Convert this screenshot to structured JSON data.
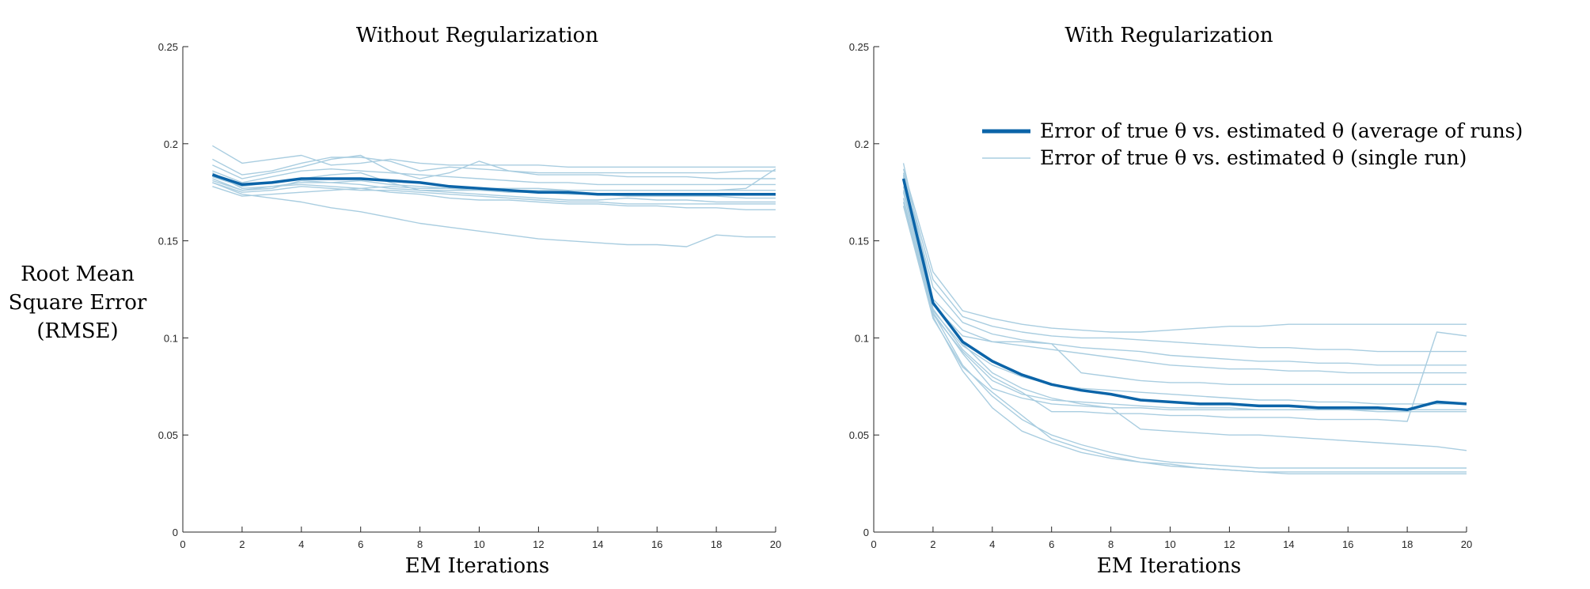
{
  "figure": {
    "ylabel_lines": [
      "Root Mean",
      "Square Error",
      "(RMSE)"
    ]
  },
  "colors": {
    "average": "#0B64A8",
    "single": "#A9CDE0",
    "axis": "#262626"
  },
  "legend": {
    "average_label": "Error of true θ vs. estimated θ (average of runs)",
    "single_label": "Error of true θ vs. estimated θ (single run)"
  },
  "chart_data": [
    {
      "type": "line",
      "title": "Without Regularization",
      "xlabel": "EM Iterations",
      "ylabel": "Root Mean Square Error (RMSE)",
      "xlim": [
        0,
        20
      ],
      "ylim": [
        0,
        0.25
      ],
      "xticks": [
        0,
        2,
        4,
        6,
        8,
        10,
        12,
        14,
        16,
        18,
        20
      ],
      "yticks": [
        0,
        0.05,
        0.1,
        0.15,
        0.2,
        0.25
      ],
      "x": [
        1,
        2,
        3,
        4,
        5,
        6,
        7,
        8,
        9,
        10,
        11,
        12,
        13,
        14,
        15,
        16,
        17,
        18,
        19,
        20
      ],
      "average": [
        0.184,
        0.179,
        0.18,
        0.182,
        0.182,
        0.182,
        0.181,
        0.18,
        0.178,
        0.177,
        0.176,
        0.175,
        0.175,
        0.174,
        0.174,
        0.174,
        0.174,
        0.174,
        0.174,
        0.174
      ],
      "runs": [
        [
          0.199,
          0.19,
          0.192,
          0.194,
          0.189,
          0.19,
          0.192,
          0.19,
          0.189,
          0.189,
          0.189,
          0.189,
          0.188,
          0.188,
          0.188,
          0.188,
          0.188,
          0.188,
          0.188,
          0.188
        ],
        [
          0.192,
          0.184,
          0.186,
          0.19,
          0.193,
          0.193,
          0.191,
          0.186,
          0.188,
          0.187,
          0.186,
          0.185,
          0.185,
          0.185,
          0.185,
          0.185,
          0.185,
          0.185,
          0.186,
          0.186
        ],
        [
          0.189,
          0.182,
          0.185,
          0.188,
          0.192,
          0.194,
          0.186,
          0.182,
          0.185,
          0.191,
          0.186,
          0.184,
          0.184,
          0.184,
          0.183,
          0.183,
          0.183,
          0.182,
          0.182,
          0.182
        ],
        [
          0.186,
          0.18,
          0.183,
          0.186,
          0.187,
          0.186,
          0.185,
          0.184,
          0.183,
          0.182,
          0.181,
          0.18,
          0.18,
          0.179,
          0.179,
          0.179,
          0.179,
          0.179,
          0.179,
          0.179
        ],
        [
          0.183,
          0.178,
          0.18,
          0.182,
          0.184,
          0.185,
          0.18,
          0.176,
          0.176,
          0.176,
          0.176,
          0.176,
          0.176,
          0.176,
          0.176,
          0.176,
          0.176,
          0.176,
          0.176,
          0.176
        ],
        [
          0.181,
          0.176,
          0.178,
          0.18,
          0.18,
          0.181,
          0.179,
          0.178,
          0.177,
          0.176,
          0.175,
          0.175,
          0.174,
          0.174,
          0.173,
          0.173,
          0.173,
          0.173,
          0.172,
          0.172
        ],
        [
          0.18,
          0.175,
          0.176,
          0.178,
          0.177,
          0.176,
          0.176,
          0.175,
          0.174,
          0.173,
          0.172,
          0.171,
          0.17,
          0.17,
          0.169,
          0.169,
          0.169,
          0.169,
          0.169,
          0.169
        ],
        [
          0.178,
          0.173,
          0.174,
          0.175,
          0.176,
          0.177,
          0.175,
          0.174,
          0.172,
          0.171,
          0.171,
          0.17,
          0.169,
          0.169,
          0.168,
          0.168,
          0.167,
          0.167,
          0.166,
          0.166
        ],
        [
          0.182,
          0.176,
          0.177,
          0.181,
          0.18,
          0.179,
          0.177,
          0.176,
          0.175,
          0.174,
          0.173,
          0.172,
          0.171,
          0.171,
          0.172,
          0.171,
          0.171,
          0.17,
          0.17,
          0.17
        ],
        [
          0.185,
          0.177,
          0.178,
          0.179,
          0.178,
          0.177,
          0.178,
          0.177,
          0.177,
          0.177,
          0.177,
          0.177,
          0.176,
          0.176,
          0.176,
          0.176,
          0.176,
          0.176,
          0.177,
          0.187
        ],
        [
          0.18,
          0.174,
          0.172,
          0.17,
          0.167,
          0.165,
          0.162,
          0.159,
          0.157,
          0.155,
          0.153,
          0.151,
          0.15,
          0.149,
          0.148,
          0.148,
          0.147,
          0.153,
          0.152,
          0.152
        ]
      ]
    },
    {
      "type": "line",
      "title": "With Regularization",
      "xlabel": "EM Iterations",
      "ylabel": "Root Mean Square Error (RMSE)",
      "xlim": [
        0,
        20
      ],
      "ylim": [
        0,
        0.25
      ],
      "xticks": [
        0,
        2,
        4,
        6,
        8,
        10,
        12,
        14,
        16,
        18,
        20
      ],
      "yticks": [
        0,
        0.05,
        0.1,
        0.15,
        0.2,
        0.25
      ],
      "x": [
        1,
        2,
        3,
        4,
        5,
        6,
        7,
        8,
        9,
        10,
        11,
        12,
        13,
        14,
        15,
        16,
        17,
        18,
        19,
        20
      ],
      "average": [
        0.182,
        0.118,
        0.098,
        0.088,
        0.081,
        0.076,
        0.073,
        0.071,
        0.068,
        0.067,
        0.066,
        0.066,
        0.065,
        0.065,
        0.064,
        0.064,
        0.064,
        0.063,
        0.067,
        0.066
      ],
      "runs": [
        [
          0.187,
          0.134,
          0.114,
          0.11,
          0.107,
          0.105,
          0.104,
          0.103,
          0.103,
          0.104,
          0.105,
          0.106,
          0.106,
          0.107,
          0.107,
          0.107,
          0.107,
          0.107,
          0.107,
          0.107
        ],
        [
          0.185,
          0.13,
          0.111,
          0.106,
          0.103,
          0.101,
          0.1,
          0.1,
          0.099,
          0.098,
          0.097,
          0.096,
          0.095,
          0.095,
          0.094,
          0.094,
          0.093,
          0.093,
          0.093,
          0.093
        ],
        [
          0.183,
          0.126,
          0.108,
          0.102,
          0.099,
          0.097,
          0.095,
          0.094,
          0.093,
          0.091,
          0.09,
          0.089,
          0.088,
          0.088,
          0.087,
          0.087,
          0.086,
          0.086,
          0.086,
          0.086
        ],
        [
          0.19,
          0.12,
          0.104,
          0.098,
          0.096,
          0.094,
          0.092,
          0.09,
          0.088,
          0.086,
          0.085,
          0.084,
          0.084,
          0.083,
          0.083,
          0.082,
          0.082,
          0.082,
          0.082,
          0.082
        ],
        [
          0.176,
          0.117,
          0.101,
          0.098,
          0.098,
          0.097,
          0.082,
          0.08,
          0.078,
          0.077,
          0.077,
          0.076,
          0.076,
          0.076,
          0.076,
          0.076,
          0.076,
          0.076,
          0.076,
          0.076
        ],
        [
          0.178,
          0.114,
          0.096,
          0.086,
          0.08,
          0.076,
          0.074,
          0.073,
          0.072,
          0.071,
          0.07,
          0.069,
          0.068,
          0.068,
          0.067,
          0.067,
          0.066,
          0.066,
          0.066,
          0.066
        ],
        [
          0.172,
          0.112,
          0.093,
          0.078,
          0.071,
          0.068,
          0.067,
          0.066,
          0.065,
          0.064,
          0.064,
          0.064,
          0.063,
          0.063,
          0.063,
          0.063,
          0.063,
          0.063,
          0.063,
          0.063
        ],
        [
          0.18,
          0.113,
          0.092,
          0.074,
          0.069,
          0.066,
          0.065,
          0.064,
          0.064,
          0.063,
          0.063,
          0.063,
          0.063,
          0.063,
          0.063,
          0.063,
          0.062,
          0.062,
          0.062,
          0.062
        ],
        [
          0.181,
          0.115,
          0.094,
          0.08,
          0.072,
          0.062,
          0.062,
          0.061,
          0.061,
          0.06,
          0.06,
          0.059,
          0.059,
          0.059,
          0.058,
          0.058,
          0.058,
          0.057,
          0.103,
          0.101
        ],
        [
          0.184,
          0.118,
          0.097,
          0.082,
          0.074,
          0.069,
          0.066,
          0.064,
          0.053,
          0.052,
          0.051,
          0.05,
          0.05,
          0.049,
          0.048,
          0.047,
          0.046,
          0.045,
          0.044,
          0.042
        ],
        [
          0.175,
          0.113,
          0.086,
          0.07,
          0.058,
          0.05,
          0.045,
          0.041,
          0.038,
          0.036,
          0.035,
          0.034,
          0.033,
          0.033,
          0.033,
          0.033,
          0.033,
          0.033,
          0.033,
          0.033
        ],
        [
          0.17,
          0.111,
          0.083,
          0.064,
          0.052,
          0.046,
          0.041,
          0.038,
          0.036,
          0.034,
          0.033,
          0.032,
          0.031,
          0.031,
          0.031,
          0.031,
          0.031,
          0.031,
          0.031,
          0.031
        ],
        [
          0.168,
          0.11,
          0.085,
          0.072,
          0.06,
          0.048,
          0.043,
          0.039,
          0.036,
          0.035,
          0.033,
          0.032,
          0.031,
          0.03,
          0.03,
          0.03,
          0.03,
          0.03,
          0.03,
          0.03
        ]
      ]
    }
  ]
}
